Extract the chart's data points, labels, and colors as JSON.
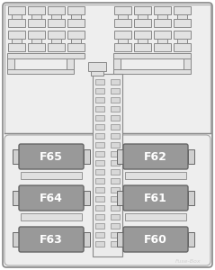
{
  "bg_color": "#ffffff",
  "box_bg": "#f2f2f2",
  "connector_bg": "#e8e8e8",
  "fuse_fill": "#999999",
  "fuse_edge": "#666666",
  "outline_color": "#aaaaaa",
  "dark_line": "#888888",
  "text_color": "#ffffff",
  "watermark": "Fuse-Box",
  "watermark_color": "#cccccc",
  "fig_width": 2.39,
  "fig_height": 3.0,
  "dpi": 100,
  "fuse_labels_left": [
    "F65",
    "F64",
    "F63"
  ],
  "fuse_labels_right": [
    "F62",
    "F61",
    "F60"
  ]
}
